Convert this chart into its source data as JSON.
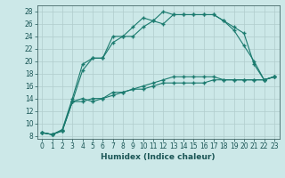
{
  "xlabel": "Humidex (Indice chaleur)",
  "ylabel": "",
  "bg_color": "#cce8e8",
  "grid_color": "#b0cccc",
  "line_color": "#1a7a6e",
  "xlim": [
    -0.5,
    23.5
  ],
  "ylim": [
    7.5,
    29.0
  ],
  "xticks": [
    0,
    1,
    2,
    3,
    4,
    5,
    6,
    7,
    8,
    9,
    10,
    11,
    12,
    13,
    14,
    15,
    16,
    17,
    18,
    19,
    20,
    21,
    22,
    23
  ],
  "yticks": [
    8,
    10,
    12,
    14,
    16,
    18,
    20,
    22,
    24,
    26,
    28
  ],
  "line1_x": [
    0,
    1,
    2,
    3,
    4,
    5,
    6,
    7,
    8,
    9,
    10,
    11,
    12,
    13,
    14,
    15,
    16,
    17,
    18,
    19,
    20,
    21,
    22,
    23
  ],
  "line1_y": [
    8.5,
    8.2,
    8.8,
    13.5,
    18.5,
    20.5,
    20.5,
    23.0,
    24.0,
    24.0,
    25.5,
    26.5,
    28.0,
    27.5,
    27.5,
    27.5,
    27.5,
    27.5,
    26.5,
    25.0,
    22.5,
    20.0,
    17.0,
    17.5
  ],
  "line2_x": [
    0,
    1,
    2,
    3,
    4,
    5,
    6,
    7,
    8,
    9,
    10,
    11,
    12,
    13,
    14,
    15,
    16,
    17,
    18,
    19,
    20,
    21,
    22,
    23
  ],
  "line2_y": [
    8.5,
    8.2,
    8.8,
    13.5,
    14.0,
    13.5,
    14.0,
    15.0,
    15.0,
    15.5,
    15.5,
    16.0,
    16.5,
    16.5,
    16.5,
    16.5,
    16.5,
    17.0,
    17.0,
    17.0,
    17.0,
    17.0,
    17.0,
    17.5
  ],
  "line3_x": [
    0,
    1,
    2,
    3,
    4,
    5,
    6,
    7,
    8,
    9,
    10,
    11,
    12,
    13,
    14,
    15,
    16,
    17,
    18,
    19,
    20,
    21,
    22,
    23
  ],
  "line3_y": [
    8.5,
    8.2,
    9.0,
    14.0,
    19.5,
    20.5,
    20.5,
    24.0,
    24.0,
    25.5,
    27.0,
    26.5,
    26.0,
    27.5,
    27.5,
    27.5,
    27.5,
    27.5,
    26.5,
    25.5,
    24.5,
    19.5,
    17.0,
    17.5
  ],
  "line4_x": [
    0,
    1,
    2,
    3,
    4,
    5,
    6,
    7,
    8,
    9,
    10,
    11,
    12,
    13,
    14,
    15,
    16,
    17,
    18,
    19,
    20,
    21,
    22,
    23
  ],
  "line4_y": [
    8.5,
    8.2,
    8.8,
    13.5,
    13.5,
    14.0,
    14.0,
    14.5,
    15.0,
    15.5,
    16.0,
    16.5,
    17.0,
    17.5,
    17.5,
    17.5,
    17.5,
    17.5,
    17.0,
    17.0,
    17.0,
    17.0,
    17.0,
    17.5
  ],
  "tick_fontsize": 5.5,
  "xlabel_fontsize": 6.5,
  "marker_size": 2.0,
  "line_width": 0.8
}
